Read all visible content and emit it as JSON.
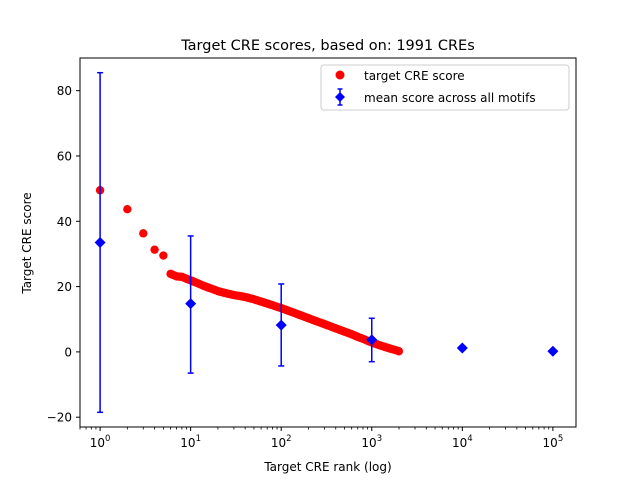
{
  "chart_data": {
    "type": "scatter",
    "title": "Target CRE scores, based on: 1991 CREs",
    "xlabel": "Target CRE rank (log)",
    "ylabel": "Target CRE score",
    "x_scale": "log",
    "xlim": [
      0.6,
      180000
    ],
    "ylim": [
      -23,
      90
    ],
    "x_ticks": [
      1,
      10,
      100,
      1000,
      10000,
      100000
    ],
    "x_tick_labels": [
      {
        "base": "10",
        "exp": "0"
      },
      {
        "base": "10",
        "exp": "1"
      },
      {
        "base": "10",
        "exp": "2"
      },
      {
        "base": "10",
        "exp": "3"
      },
      {
        "base": "10",
        "exp": "4"
      },
      {
        "base": "10",
        "exp": "5"
      }
    ],
    "y_ticks": [
      -20,
      0,
      20,
      40,
      60,
      80
    ],
    "grid": false,
    "legend_position": "top-right",
    "legend": [
      {
        "label": "target CRE score",
        "marker": "circle",
        "color": "#ff0000"
      },
      {
        "label": "mean score across all motifs",
        "marker": "diamond-errorbar",
        "color": "#0000ff"
      }
    ],
    "series": [
      {
        "name": "target CRE score",
        "color": "#ff0000",
        "marker": "circle",
        "points": [
          [
            1,
            49.5
          ],
          [
            2,
            43.7
          ],
          [
            3,
            36.3
          ],
          [
            4,
            31.3
          ],
          [
            5,
            29.5
          ],
          [
            6,
            23.9
          ],
          [
            7,
            23.1
          ],
          [
            8,
            23.0
          ],
          [
            9,
            22.4
          ],
          [
            10,
            21.9
          ],
          [
            12,
            21.0
          ],
          [
            14,
            20.2
          ],
          [
            16,
            19.6
          ],
          [
            18,
            19.1
          ],
          [
            20,
            18.6
          ],
          [
            25,
            17.9
          ],
          [
            30,
            17.4
          ],
          [
            35,
            17.1
          ],
          [
            40,
            16.8
          ],
          [
            50,
            16.1
          ],
          [
            60,
            15.4
          ],
          [
            70,
            14.8
          ],
          [
            80,
            14.3
          ],
          [
            90,
            13.8
          ],
          [
            100,
            13.4
          ],
          [
            120,
            12.6
          ],
          [
            150,
            11.6
          ],
          [
            200,
            10.3
          ],
          [
            250,
            9.3
          ],
          [
            300,
            8.5
          ],
          [
            400,
            7.2
          ],
          [
            500,
            6.2
          ],
          [
            600,
            5.4
          ],
          [
            700,
            4.6
          ],
          [
            800,
            4.0
          ],
          [
            900,
            3.4
          ],
          [
            1000,
            2.9
          ],
          [
            1200,
            2.1
          ],
          [
            1400,
            1.5
          ],
          [
            1600,
            1.0
          ],
          [
            1800,
            0.6
          ],
          [
            1991,
            0.2
          ]
        ]
      },
      {
        "name": "mean score across all motifs",
        "color": "#0000ff",
        "marker": "diamond",
        "points": [
          {
            "x": 1,
            "y": 33.5,
            "yerr_low": -18.5,
            "yerr_high": 85.5
          },
          {
            "x": 10,
            "y": 14.8,
            "yerr_low": -6.5,
            "yerr_high": 35.5
          },
          {
            "x": 100,
            "y": 8.2,
            "yerr_low": -4.3,
            "yerr_high": 20.8
          },
          {
            "x": 1000,
            "y": 3.7,
            "yerr_low": -3.0,
            "yerr_high": 10.3
          },
          {
            "x": 10000,
            "y": 1.2,
            "yerr_low": 0.6,
            "yerr_high": 1.8
          },
          {
            "x": 100000,
            "y": 0.2,
            "yerr_low": 0.2,
            "yerr_high": 0.2
          }
        ]
      }
    ]
  }
}
